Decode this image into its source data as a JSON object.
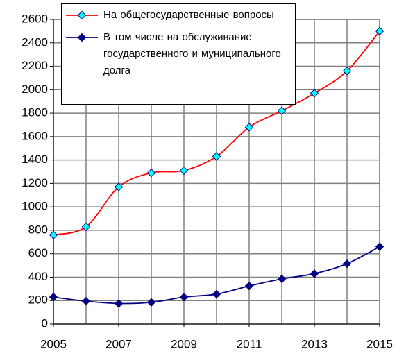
{
  "chart_data": {
    "type": "line",
    "x": [
      2005,
      2006,
      2007,
      2008,
      2009,
      2010,
      2011,
      2012,
      2013,
      2014,
      2015
    ],
    "series": [
      {
        "name": "На общегосударственные вопросы",
        "color": "#ff0000",
        "marker_color": "#00ffff",
        "values": [
          760,
          830,
          1170,
          1290,
          1310,
          1430,
          1680,
          1820,
          1970,
          2160,
          2500
        ]
      },
      {
        "name": "В том числе на обслуживание государственного и муниципального долга",
        "color": "#000080",
        "marker_color": "#000080",
        "values": [
          230,
          195,
          175,
          185,
          230,
          255,
          325,
          385,
          430,
          515,
          660
        ]
      }
    ],
    "xlim": [
      2005,
      2015
    ],
    "xticks": [
      2005,
      2007,
      2009,
      2011,
      2013,
      2015
    ],
    "ylim": [
      0,
      2600
    ],
    "yticks": [
      0,
      200,
      400,
      600,
      800,
      1000,
      1200,
      1400,
      1600,
      1800,
      2000,
      2200,
      2400,
      2600
    ],
    "grid": true,
    "legend": "top-left"
  }
}
